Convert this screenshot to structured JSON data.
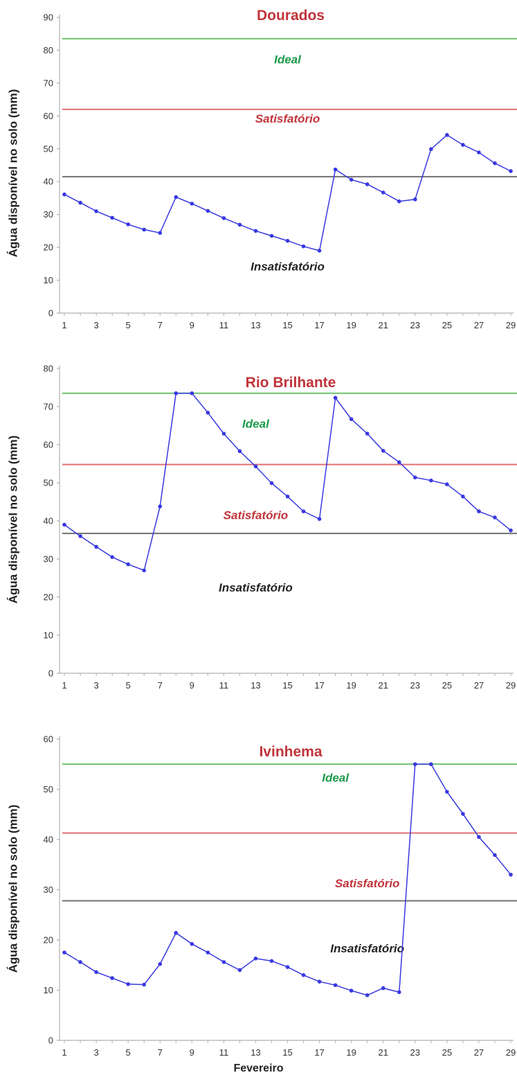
{
  "xlabel": "Fevereiro",
  "ylabel": "Água disponível no solo (mm)",
  "colors": {
    "series": "#3838e0",
    "ideal_line": "#6cc06c",
    "satisfactory_line": "#e07070",
    "unsatisfactory_line": "#707070",
    "title": "#c0343a",
    "ideal_text": "#1a9a4a",
    "satisfactory_text": "#c0343a",
    "unsatisfactory_text": "#222222"
  },
  "chart_data": [
    {
      "type": "line",
      "title": "Dourados",
      "xlabel": "",
      "ylabel": "Água disponível no solo (mm)",
      "xlim": [
        1,
        29
      ],
      "ylim": [
        0,
        90
      ],
      "y_ticks": [
        0,
        10,
        20,
        30,
        40,
        50,
        60,
        70,
        80,
        90
      ],
      "x_ticks": [
        1,
        3,
        5,
        7,
        9,
        11,
        13,
        15,
        17,
        19,
        21,
        23,
        25,
        27,
        29
      ],
      "grid": false,
      "thresholds": [
        {
          "label": "Ideal",
          "value": 83.5,
          "kind": "ideal",
          "label_x": 15,
          "label_y": 76
        },
        {
          "label": "Satisfatório",
          "value": 62,
          "kind": "satisfactory",
          "label_x": 15,
          "label_y": 58
        },
        {
          "label": "Insatisfatório",
          "value": 41.5,
          "kind": "unsatisfactory",
          "label_x": 15,
          "label_y": 13
        }
      ],
      "series": [
        {
          "x": [
            1,
            2,
            3,
            4,
            5,
            6,
            7,
            8,
            9,
            10,
            11,
            12,
            13,
            14,
            15,
            16,
            17,
            18,
            19,
            20,
            21,
            22,
            23,
            24,
            25,
            26,
            27,
            28,
            29
          ],
          "values": [
            36.1,
            33.6,
            31.0,
            29.0,
            27.0,
            25.4,
            24.4,
            35.3,
            33.3,
            31.1,
            28.9,
            26.9,
            25.0,
            23.5,
            22.0,
            20.3,
            19.0,
            43.7,
            40.6,
            39.2,
            36.7,
            34.0,
            34.6,
            49.9,
            54.2,
            51.2,
            48.9,
            45.6,
            43.2
          ]
        }
      ]
    },
    {
      "type": "line",
      "title": "Rio Brilhante",
      "xlabel": "",
      "ylabel": "Água disponível no solo (mm)",
      "xlim": [
        1,
        29
      ],
      "ylim": [
        0,
        80
      ],
      "y_ticks": [
        0,
        10,
        20,
        30,
        40,
        50,
        60,
        70,
        80
      ],
      "x_ticks": [
        1,
        3,
        5,
        7,
        9,
        11,
        13,
        15,
        17,
        19,
        21,
        23,
        25,
        27,
        29
      ],
      "grid": false,
      "thresholds": [
        {
          "label": "Ideal",
          "value": 73.5,
          "kind": "ideal",
          "label_x": 13,
          "label_y": 64.5
        },
        {
          "label": "Satisfatório",
          "value": 54.8,
          "kind": "satisfactory",
          "label_x": 13,
          "label_y": 40.5
        },
        {
          "label": "Insatisfatório",
          "value": 36.7,
          "kind": "unsatisfactory",
          "label_x": 13,
          "label_y": 21.5
        }
      ],
      "series": [
        {
          "x": [
            1,
            2,
            3,
            4,
            5,
            6,
            7,
            8,
            9,
            10,
            11,
            12,
            13,
            14,
            15,
            16,
            17,
            18,
            19,
            20,
            21,
            22,
            23,
            24,
            25,
            26,
            27,
            28,
            29
          ],
          "values": [
            39.0,
            36.0,
            33.2,
            30.5,
            28.6,
            27.0,
            43.8,
            73.5,
            73.5,
            68.4,
            62.9,
            58.3,
            54.3,
            49.9,
            46.4,
            42.5,
            40.5,
            72.3,
            66.7,
            62.9,
            58.4,
            55.4,
            51.4,
            50.6,
            49.6,
            46.4,
            42.5,
            40.9,
            37.5
          ]
        }
      ]
    },
    {
      "type": "line",
      "title": "Ivinhema",
      "xlabel": "Fevereiro",
      "ylabel": "Água disponível no solo (mm)",
      "xlim": [
        1,
        29
      ],
      "ylim": [
        0,
        60
      ],
      "y_ticks": [
        0,
        10,
        20,
        30,
        40,
        50,
        60
      ],
      "x_ticks": [
        1,
        3,
        5,
        7,
        9,
        11,
        13,
        15,
        17,
        19,
        21,
        23,
        25,
        27,
        29
      ],
      "grid": false,
      "thresholds": [
        {
          "label": "Ideal",
          "value": 55,
          "kind": "ideal",
          "label_x": 18,
          "label_y": 51.5
        },
        {
          "label": "Satisfatório",
          "value": 41.3,
          "kind": "satisfactory",
          "label_x": 20,
          "label_y": 30.5
        },
        {
          "label": "Insatisfatório",
          "value": 27.8,
          "kind": "unsatisfactory",
          "label_x": 20,
          "label_y": 17.5
        }
      ],
      "series": [
        {
          "x": [
            1,
            2,
            3,
            4,
            5,
            6,
            7,
            8,
            9,
            10,
            11,
            12,
            13,
            14,
            15,
            16,
            17,
            18,
            19,
            20,
            21,
            22,
            23,
            24,
            25,
            26,
            27,
            28,
            29
          ],
          "values": [
            17.5,
            15.6,
            13.6,
            12.4,
            11.2,
            11.1,
            15.2,
            21.4,
            19.2,
            17.5,
            15.6,
            14.0,
            16.3,
            15.8,
            14.6,
            13.0,
            11.7,
            11.0,
            9.9,
            9.0,
            10.4,
            9.6,
            55.0,
            55.0,
            49.5,
            45.1,
            40.5,
            36.9,
            33.0
          ]
        }
      ]
    }
  ]
}
